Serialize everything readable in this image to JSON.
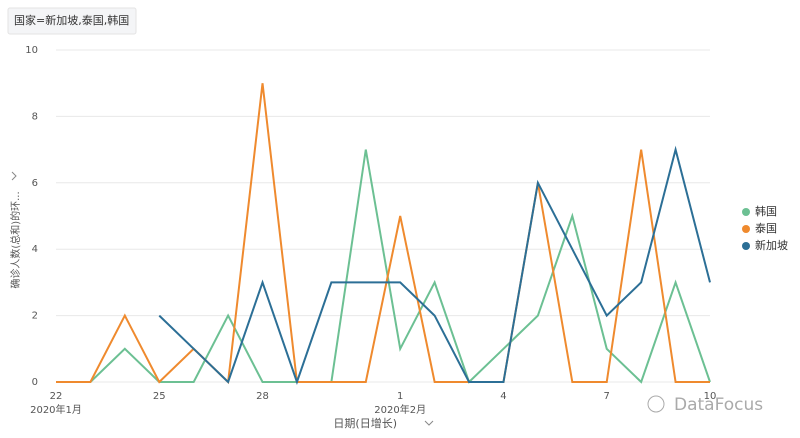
{
  "filter_label": "国家=新加坡,泰国,韩国",
  "watermark": "DataFocus",
  "chart_data": {
    "type": "line",
    "y_label": "确诊人数(总和)的环...",
    "x_label": "日期(日增长)",
    "categories": [
      "22",
      null,
      null,
      "25",
      null,
      null,
      "28",
      null,
      null,
      null,
      "1",
      null,
      null,
      "4",
      null,
      null,
      "7",
      null,
      null,
      "10"
    ],
    "category_groups": [
      {
        "label": "2020年1月",
        "index": 0
      },
      {
        "label": "2020年2月",
        "index": 10
      }
    ],
    "series": [
      {
        "name": "韩国",
        "color": "#6cc093",
        "values": [
          0,
          0,
          1,
          0,
          0,
          2,
          0,
          0,
          0,
          7,
          1,
          3,
          0,
          1,
          2,
          5,
          1,
          0,
          3,
          0
        ]
      },
      {
        "name": "泰国",
        "color": "#ef8a2e",
        "values": [
          0,
          0,
          2,
          0,
          1,
          0,
          9,
          0,
          0,
          0,
          5,
          0,
          0,
          0,
          6,
          0,
          0,
          7,
          0,
          0
        ]
      },
      {
        "name": "新加坡",
        "color": "#2c6f96",
        "values": [
          null,
          null,
          null,
          2,
          1,
          0,
          3,
          0,
          3,
          3,
          3,
          2,
          0,
          0,
          6,
          4,
          2,
          3,
          7,
          3
        ]
      }
    ],
    "ylim": [
      0,
      10
    ],
    "yticks": [
      0,
      2,
      4,
      6,
      8,
      10
    ],
    "grid": true,
    "legend": "right"
  }
}
